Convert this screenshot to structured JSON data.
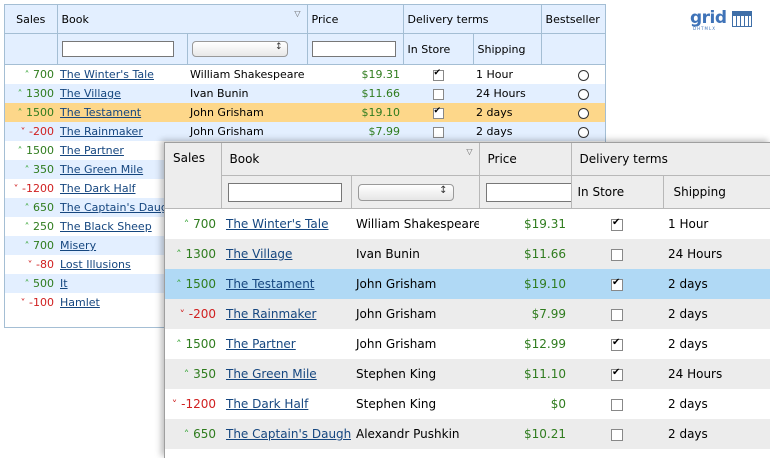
{
  "back_grid": {
    "columns": {
      "sales": "Sales",
      "book": "Book",
      "price": "Price",
      "delivery": "Delivery terms",
      "in_store": "In Store",
      "shipping": "Shipping",
      "bestseller": "Bestseller"
    },
    "rows": [
      {
        "trend": "up",
        "sales": "700",
        "book": "The Winter's Tale",
        "author": "William Shakespeare",
        "price": "$19.31",
        "in_store": true,
        "shipping": "1 Hour"
      },
      {
        "trend": "up",
        "sales": "1300",
        "book": "The Village",
        "author": "Ivan Bunin",
        "price": "$11.66",
        "in_store": false,
        "shipping": "24 Hours"
      },
      {
        "trend": "up",
        "sales": "1500",
        "book": "The Testament",
        "author": "John Grisham",
        "price": "$19.10",
        "in_store": true,
        "shipping": "2 days"
      },
      {
        "trend": "down",
        "sales": "-200",
        "book": "The Rainmaker",
        "author": "John Grisham",
        "price": "$7.99",
        "in_store": false,
        "shipping": "2 days"
      },
      {
        "trend": "up",
        "sales": "1500",
        "book": "The Partner"
      },
      {
        "trend": "up",
        "sales": "350",
        "book": "The Green Mile"
      },
      {
        "trend": "down",
        "sales": "-1200",
        "book": "The Dark Half"
      },
      {
        "trend": "up",
        "sales": "650",
        "book": "The Captain's Daughter"
      },
      {
        "trend": "up",
        "sales": "250",
        "book": "The Black Sheep"
      },
      {
        "trend": "up",
        "sales": "700",
        "book": "Misery"
      },
      {
        "trend": "down",
        "sales": "-80",
        "book": "Lost Illusions"
      },
      {
        "trend": "up",
        "sales": "500",
        "book": "It"
      },
      {
        "trend": "down",
        "sales": "-100",
        "book": "Hamlet"
      }
    ]
  },
  "logo": {
    "word": "grid",
    "sub": "DHTMLX"
  },
  "front_grid": {
    "columns": {
      "sales": "Sales",
      "book": "Book",
      "price": "Price",
      "delivery": "Delivery terms",
      "in_store": "In Store",
      "shipping": "Shipping"
    },
    "rows": [
      {
        "trend": "up",
        "sales": "700",
        "book": "The Winter's Tale",
        "author": "William Shakespeare",
        "price": "$19.31",
        "in_store": true,
        "shipping": "1 Hour"
      },
      {
        "trend": "up",
        "sales": "1300",
        "book": "The Village",
        "author": "Ivan Bunin",
        "price": "$11.66",
        "in_store": false,
        "shipping": "24 Hours"
      },
      {
        "trend": "up",
        "sales": "1500",
        "book": "The Testament",
        "author": "John Grisham",
        "price": "$19.10",
        "in_store": true,
        "shipping": "2 days"
      },
      {
        "trend": "down",
        "sales": "-200",
        "book": "The Rainmaker",
        "author": "John Grisham",
        "price": "$7.99",
        "in_store": false,
        "shipping": "2 days"
      },
      {
        "trend": "up",
        "sales": "1500",
        "book": "The Partner",
        "author": "John Grisham",
        "price": "$12.99",
        "in_store": true,
        "shipping": "2 days"
      },
      {
        "trend": "up",
        "sales": "350",
        "book": "The Green Mile",
        "author": "Stephen King",
        "price": "$11.10",
        "in_store": true,
        "shipping": "24 Hours"
      },
      {
        "trend": "down",
        "sales": "-1200",
        "book": "The Dark Half",
        "author": "Stephen King",
        "price": "$0",
        "in_store": false,
        "shipping": "2 days"
      },
      {
        "trend": "up",
        "sales": "650",
        "book": "The Captain's Daughter",
        "author": "Alexandr Pushkin",
        "price": "$10.21",
        "in_store": false,
        "shipping": "2 days"
      }
    ]
  },
  "colors": {
    "positive": "#2f7c1e",
    "negative": "#d02020",
    "link": "#15467f",
    "back_selected": "#fdd78a",
    "front_selected": "#b0d9f5"
  }
}
